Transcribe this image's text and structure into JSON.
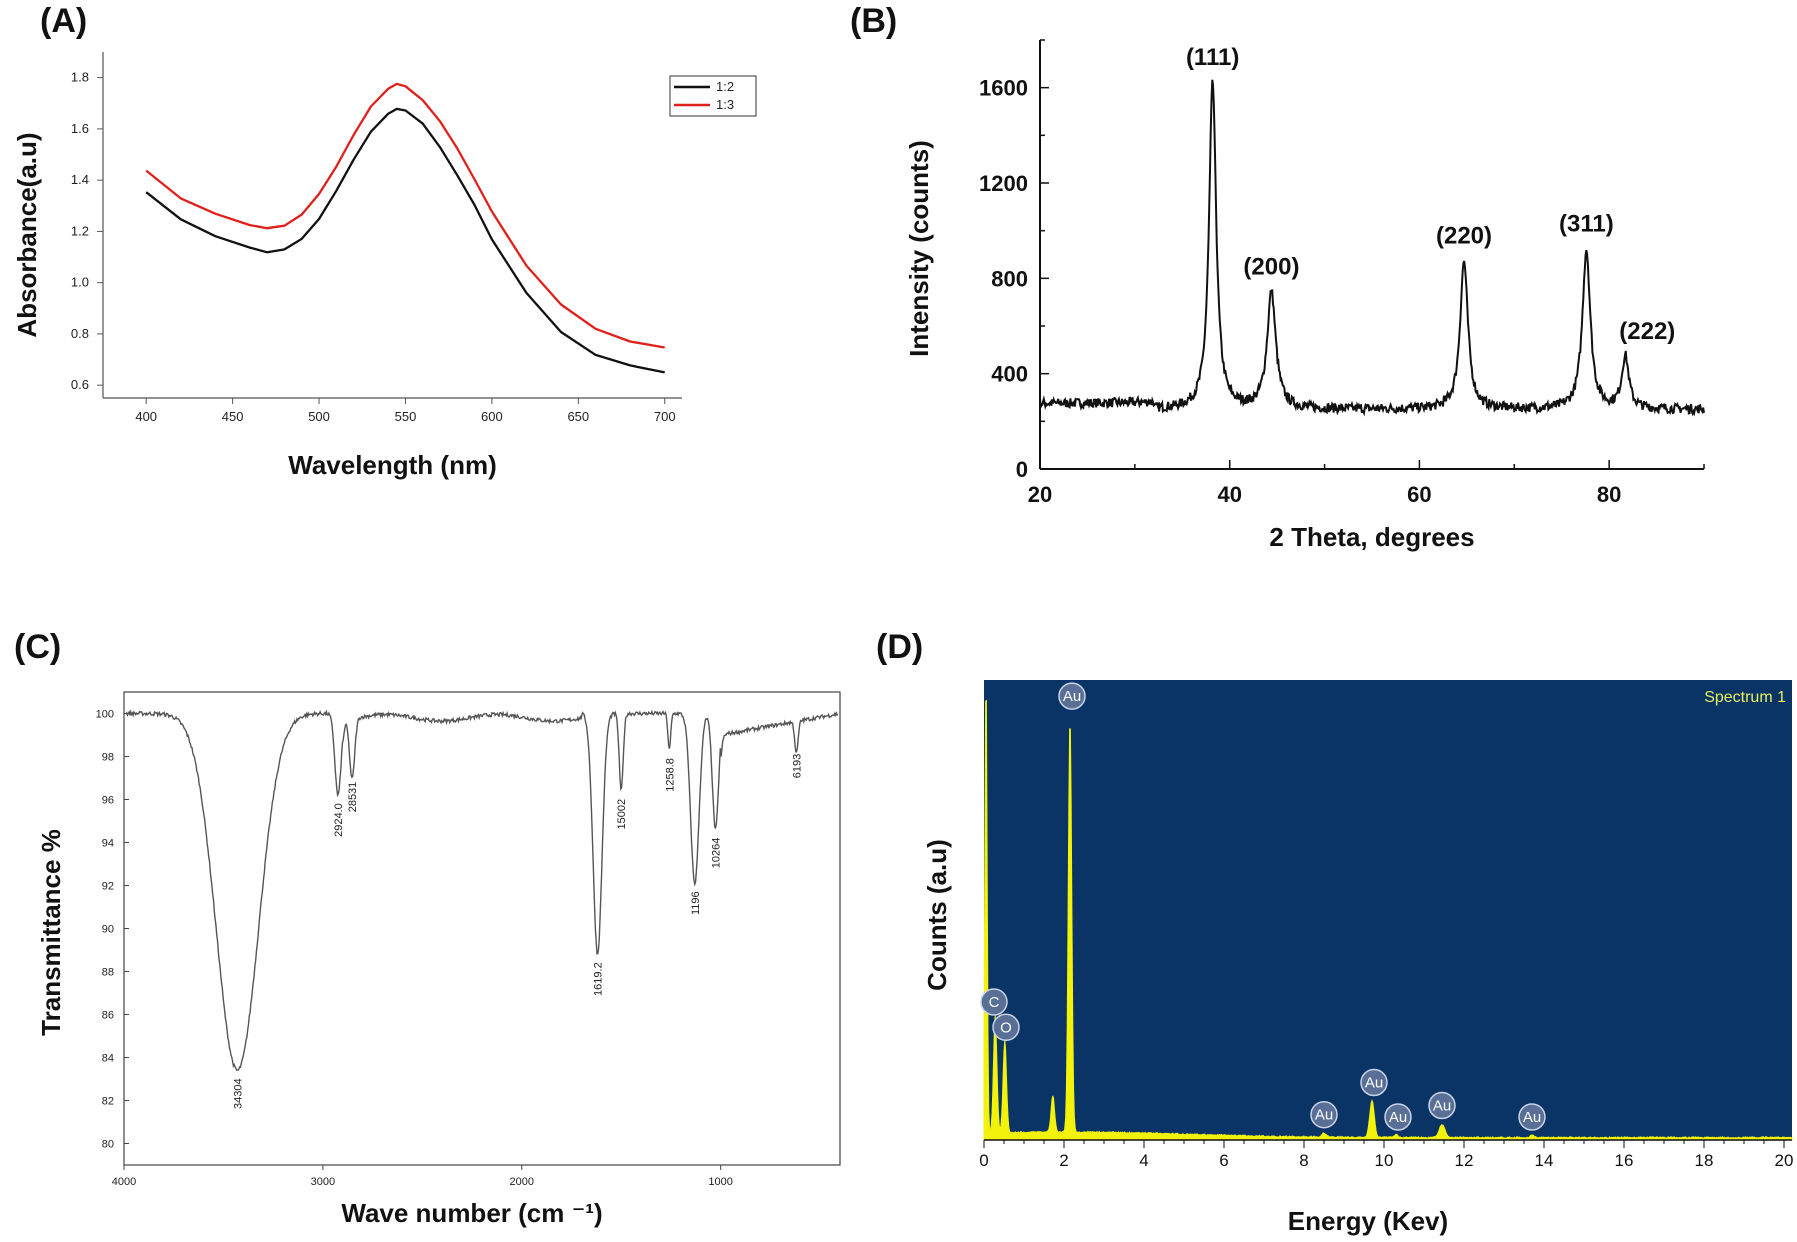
{
  "chart_data": [
    {
      "panel_label": "(A)",
      "type": "line",
      "title": "",
      "xlabel": "Wavelength (nm)",
      "ylabel": "Absorbance(a.u)",
      "xlim": [
        375,
        710
      ],
      "ylim": [
        0.55,
        1.9
      ],
      "xticks": [
        400,
        450,
        500,
        550,
        600,
        650,
        700
      ],
      "yticks": [
        0.6,
        0.8,
        1.0,
        1.2,
        1.4,
        1.6,
        1.8
      ],
      "ytick_labels": [
        "0.6",
        "0.8",
        "1.0",
        "1.2",
        "1.4",
        "1.6",
        "1.8"
      ],
      "grid": false,
      "legend_position": "top-right",
      "series": [
        {
          "name": "1:2",
          "color": "#111111",
          "x": [
            400,
            420,
            440,
            460,
            470,
            480,
            490,
            500,
            510,
            520,
            530,
            540,
            545,
            550,
            560,
            570,
            580,
            590,
            600,
            620,
            640,
            660,
            680,
            700
          ],
          "y": [
            1.35,
            1.25,
            1.18,
            1.135,
            1.12,
            1.13,
            1.17,
            1.25,
            1.36,
            1.48,
            1.59,
            1.66,
            1.68,
            1.67,
            1.62,
            1.53,
            1.42,
            1.3,
            1.17,
            0.96,
            0.81,
            0.72,
            0.675,
            0.65
          ]
        },
        {
          "name": "1:3",
          "color": "#e0201a",
          "x": [
            400,
            420,
            440,
            460,
            470,
            480,
            490,
            500,
            510,
            520,
            530,
            540,
            545,
            550,
            560,
            570,
            580,
            590,
            600,
            620,
            640,
            660,
            680,
            700
          ],
          "y": [
            1.44,
            1.33,
            1.27,
            1.225,
            1.215,
            1.225,
            1.265,
            1.345,
            1.455,
            1.575,
            1.685,
            1.755,
            1.775,
            1.765,
            1.715,
            1.63,
            1.525,
            1.405,
            1.275,
            1.065,
            0.915,
            0.82,
            0.77,
            0.745
          ]
        }
      ]
    },
    {
      "panel_label": "(B)",
      "type": "line",
      "title": "",
      "xlabel": "2 Theta, degrees",
      "ylabel": "Intensity (counts)",
      "xlim": [
        20,
        90
      ],
      "ylim": [
        0,
        1800
      ],
      "xticks": [
        20,
        40,
        60,
        80
      ],
      "yticks": [
        0,
        400,
        800,
        1200,
        1600
      ],
      "grid": false,
      "baseline": 250,
      "peaks": [
        {
          "label": "(111)",
          "x": 38.2,
          "y": 1620
        },
        {
          "label": "(200)",
          "x": 44.4,
          "y": 740
        },
        {
          "label": "(220)",
          "x": 64.7,
          "y": 870
        },
        {
          "label": "(311)",
          "x": 77.6,
          "y": 920
        },
        {
          "label": "(222)",
          "x": 81.7,
          "y": 470
        }
      ]
    },
    {
      "panel_label": "(C)",
      "type": "line",
      "title": "",
      "xlabel": "Wave number (cm ⁻¹)",
      "ylabel": "Transmittance %",
      "xlim": [
        4000,
        400
      ],
      "ylim": [
        79,
        101
      ],
      "xticks": [
        4000,
        3000,
        2000,
        1000
      ],
      "yticks": [
        80,
        82,
        84,
        86,
        88,
        90,
        92,
        94,
        96,
        98,
        100
      ],
      "grid": false,
      "baseline": 100,
      "peaks": [
        {
          "label": "34304",
          "x": 3430,
          "y": 83.4
        },
        {
          "label": "2924.0",
          "x": 2924,
          "y": 96.2
        },
        {
          "label": "28531",
          "x": 2853,
          "y": 97.2
        },
        {
          "label": "1619.2",
          "x": 1619,
          "y": 88.8
        },
        {
          "label": "15002",
          "x": 1500,
          "y": 96.4
        },
        {
          "label": "1258.8",
          "x": 1258,
          "y": 98.3
        },
        {
          "label": "1196",
          "x": 1130,
          "y": 92.1
        },
        {
          "label": "10264",
          "x": 1026,
          "y": 94.6
        },
        {
          "label": "6193",
          "x": 619,
          "y": 98.5
        }
      ]
    },
    {
      "panel_label": "(D)",
      "type": "area",
      "title": "",
      "legend_text": "Spectrum 1",
      "xlabel": "Energy (Kev)",
      "ylabel": "Counts (a.u)",
      "xlim": [
        0,
        20.2
      ],
      "ylim": [
        0,
        1
      ],
      "xticks": [
        0,
        2,
        4,
        6,
        8,
        10,
        12,
        14,
        16,
        18,
        20
      ],
      "grid": false,
      "background_color": "#0a3366",
      "fill_color": "#f2f20a",
      "peaks": [
        {
          "label": "",
          "x": 0.05,
          "y": 1.0
        },
        {
          "label": "C",
          "x": 0.28,
          "y": 0.255
        },
        {
          "label": "O",
          "x": 0.52,
          "y": 0.2
        },
        {
          "label": "",
          "x": 1.72,
          "y": 0.08
        },
        {
          "label": "Au",
          "x": 2.15,
          "y": 0.9
        },
        {
          "label": "Au",
          "x": 8.5,
          "y": 0.008
        },
        {
          "label": "Au",
          "x": 9.7,
          "y": 0.08
        },
        {
          "label": "Au",
          "x": 10.3,
          "y": 0.006
        },
        {
          "label": "Au",
          "x": 11.45,
          "y": 0.028
        },
        {
          "label": "Au",
          "x": 13.7,
          "y": 0.005
        }
      ],
      "element_labels": [
        {
          "text": "Au",
          "x": 2.2,
          "y": 0.965
        },
        {
          "text": "C",
          "x": 0.25,
          "y": 0.3
        },
        {
          "text": "O",
          "x": 0.55,
          "y": 0.245
        },
        {
          "text": "Au",
          "x": 8.5,
          "y": 0.055
        },
        {
          "text": "Au",
          "x": 9.75,
          "y": 0.125
        },
        {
          "text": "Au",
          "x": 10.35,
          "y": 0.05
        },
        {
          "text": "Au",
          "x": 11.45,
          "y": 0.075
        },
        {
          "text": "Au",
          "x": 13.7,
          "y": 0.05
        }
      ]
    }
  ]
}
